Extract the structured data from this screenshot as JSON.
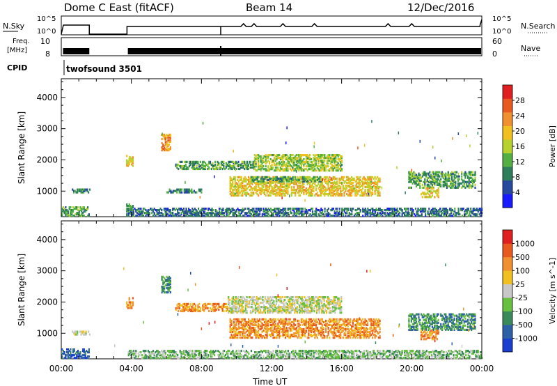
{
  "header": {
    "title": "Dome C East (fitACF)",
    "beam": "Beam 14",
    "date": "12/Dec/2016"
  },
  "top_panels": {
    "nsky_label": "N.Sky",
    "nsky_ticks": [
      "10^5",
      "10^0"
    ],
    "nsearch_label": "N.Search",
    "nsearch_ticks": [
      "10^5",
      "10^0"
    ],
    "freq_label_line1": "Freq.",
    "freq_label_line2": "[MHz]",
    "freq_ticks": [
      "10",
      "8"
    ],
    "nave_label": "Nave",
    "nave_ticks": [
      "60",
      "0"
    ],
    "cpid_label": "CPID",
    "cpid_value": "twofsound 3501"
  },
  "chart_data": [
    {
      "type": "heatmap",
      "panel": "power",
      "ylabel": "Slant Range [km]",
      "xlabel": "",
      "y_ticks": [
        1000,
        2000,
        3000,
        4000
      ],
      "ylim": [
        180,
        4600
      ],
      "xlim": [
        0,
        24
      ],
      "colorbar": {
        "label": "Power [dB]",
        "ticks": [
          "4",
          "8",
          "12",
          "16",
          "20",
          "24",
          "28"
        ],
        "colors": [
          "#1a1aff",
          "#274a9e",
          "#2e7d5b",
          "#52b043",
          "#b7d22f",
          "#f0c020",
          "#f09030",
          "#e85a20",
          "#e02020"
        ],
        "range": [
          0,
          30
        ]
      },
      "regions": [
        {
          "t": [
            0.0,
            1.6
          ],
          "r": [
            200,
            500
          ],
          "v": 10
        },
        {
          "t": [
            0.6,
            1.6
          ],
          "r": [
            950,
            1050
          ],
          "v": 8
        },
        {
          "t": [
            3.7,
            4.1
          ],
          "r": [
            1800,
            2150
          ],
          "v": 18
        },
        {
          "t": [
            3.7,
            4.1
          ],
          "r": [
            200,
            600
          ],
          "v": 8
        },
        {
          "t": [
            5.7,
            6.2
          ],
          "r": [
            2300,
            2800
          ],
          "v": 22
        },
        {
          "t": [
            6.5,
            11.0
          ],
          "r": [
            1700,
            1950
          ],
          "v": 10
        },
        {
          "t": [
            11.0,
            16.0
          ],
          "r": [
            1650,
            2150
          ],
          "v": 14
        },
        {
          "t": [
            9.6,
            18.2
          ],
          "r": [
            850,
            1450
          ],
          "v": 18
        },
        {
          "t": [
            10.8,
            14.8
          ],
          "r": [
            1300,
            1450
          ],
          "v": 10
        },
        {
          "t": [
            19.8,
            23.6
          ],
          "r": [
            1100,
            1600
          ],
          "v": 10
        },
        {
          "t": [
            20.5,
            21.5
          ],
          "r": [
            800,
            1100
          ],
          "v": 18
        },
        {
          "t": [
            3.8,
            24.0
          ],
          "r": [
            200,
            450
          ],
          "v": 6
        },
        {
          "t": [
            6.0,
            8.0
          ],
          "r": [
            950,
            1050
          ],
          "v": 8
        }
      ]
    },
    {
      "type": "heatmap",
      "panel": "velocity",
      "ylabel": "Slant Range [km]",
      "xlabel": "Time UT",
      "y_ticks": [
        1000,
        2000,
        3000,
        4000
      ],
      "ylim": [
        180,
        4600
      ],
      "xlim": [
        0,
        24
      ],
      "x_ticks": [
        "00:00",
        "04:00",
        "08:00",
        "12:00",
        "16:00",
        "20:00",
        "00:00"
      ],
      "colorbar": {
        "label": "Velocity [m s^-1]",
        "ticks": [
          "1000",
          "500",
          "100",
          "25",
          "-25",
          "-100",
          "-500",
          "-1000"
        ],
        "colors": [
          "#1a3fcf",
          "#2e60a8",
          "#3b8a5a",
          "#68c040",
          "#c8c8c8",
          "#f0c020",
          "#f09030",
          "#e85a20",
          "#e02020"
        ]
      },
      "regions": [
        {
          "t": [
            0.0,
            1.6
          ],
          "r": [
            200,
            500
          ],
          "v": 1
        },
        {
          "t": [
            0.6,
            1.6
          ],
          "r": [
            950,
            1050
          ],
          "v": 4
        },
        {
          "t": [
            3.7,
            4.1
          ],
          "r": [
            1800,
            2150
          ],
          "v": 6
        },
        {
          "t": [
            5.7,
            6.2
          ],
          "r": [
            2300,
            2800
          ],
          "v": 2
        },
        {
          "t": [
            6.5,
            9.5
          ],
          "r": [
            1700,
            1950
          ],
          "v": 6
        },
        {
          "t": [
            9.5,
            16.0
          ],
          "r": [
            1650,
            2150
          ],
          "v": 4
        },
        {
          "t": [
            9.6,
            18.2
          ],
          "r": [
            850,
            1450
          ],
          "v": 6
        },
        {
          "t": [
            19.8,
            23.6
          ],
          "r": [
            1100,
            1600
          ],
          "v": 2
        },
        {
          "t": [
            20.5,
            21.5
          ],
          "r": [
            800,
            1100
          ],
          "v": 6
        },
        {
          "t": [
            3.8,
            24.0
          ],
          "r": [
            200,
            450
          ],
          "v": 3
        }
      ]
    }
  ]
}
